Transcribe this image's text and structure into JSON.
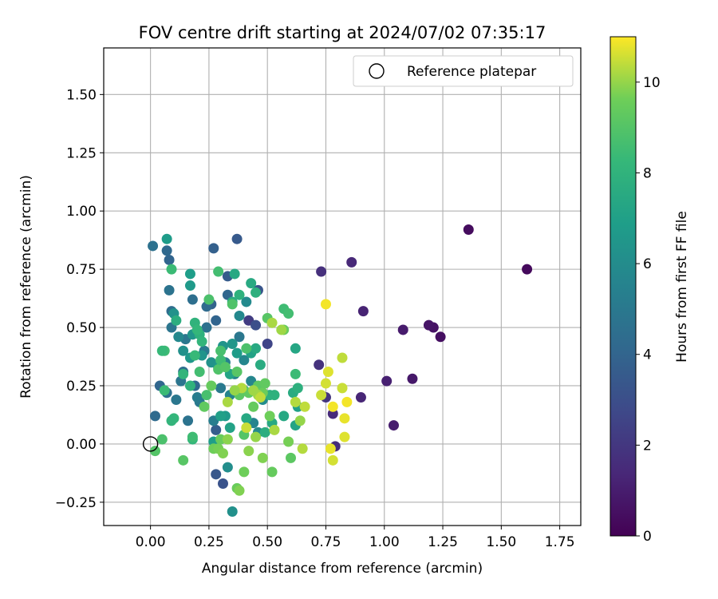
{
  "chart_data": {
    "type": "scatter",
    "title": "FOV centre drift starting at 2024/07/02 07:35:17",
    "xlabel": "Angular distance from reference (arcmin)",
    "ylabel": "Rotation from reference (arcmin)",
    "xlim": [
      -0.2,
      1.84
    ],
    "ylim": [
      -0.35,
      1.7
    ],
    "xticks": [
      0.0,
      0.25,
      0.5,
      0.75,
      1.0,
      1.25,
      1.5,
      1.75
    ],
    "xtick_labels": [
      "0.00",
      "0.25",
      "0.50",
      "0.75",
      "1.00",
      "1.25",
      "1.50",
      "1.75"
    ],
    "yticks": [
      -0.25,
      0.0,
      0.25,
      0.5,
      0.75,
      1.0,
      1.25,
      1.5
    ],
    "ytick_labels": [
      "−0.25",
      "0.00",
      "0.25",
      "0.50",
      "0.75",
      "1.00",
      "1.25",
      "1.50"
    ],
    "grid": true,
    "legend": {
      "position": "top-right",
      "entries": [
        "Reference platepar"
      ]
    },
    "reference_point": {
      "x": 0.0,
      "y": 0.0
    },
    "colorbar": {
      "label": "Hours from first FF file",
      "colormap": "viridis",
      "range": [
        0,
        11.0
      ],
      "ticks": [
        0,
        2,
        4,
        6,
        8,
        10
      ],
      "tick_labels": [
        "0",
        "2",
        "4",
        "6",
        "8",
        "10"
      ]
    },
    "series": [
      {
        "points": [
          [
            1.61,
            0.75,
            0.3
          ],
          [
            1.36,
            0.92,
            0.4
          ],
          [
            1.24,
            0.46,
            0.5
          ],
          [
            1.21,
            0.5,
            0.6
          ],
          [
            1.19,
            0.51,
            0.7
          ],
          [
            1.12,
            0.28,
            0.8
          ],
          [
            1.08,
            0.49,
            0.9
          ],
          [
            1.04,
            0.08,
            1.0
          ],
          [
            1.01,
            0.27,
            1.1
          ],
          [
            0.91,
            0.57,
            1.2
          ],
          [
            0.9,
            0.2,
            1.3
          ],
          [
            0.86,
            0.78,
            1.4
          ],
          [
            0.78,
            0.13,
            1.5
          ],
          [
            0.79,
            -0.01,
            1.6
          ],
          [
            0.73,
            0.74,
            1.7
          ],
          [
            0.72,
            0.34,
            1.8
          ],
          [
            0.75,
            0.2,
            1.9
          ],
          [
            0.42,
            0.53,
            2.2
          ],
          [
            0.5,
            0.43,
            2.6
          ],
          [
            0.45,
            0.51,
            3.0
          ],
          [
            0.46,
            0.66,
            3.3
          ],
          [
            0.37,
            0.88,
            3.5
          ],
          [
            0.27,
            0.84,
            3.8
          ],
          [
            0.08,
            0.79,
            4.0
          ],
          [
            0.07,
            0.83,
            4.2
          ],
          [
            0.33,
            0.72,
            3.6
          ],
          [
            0.26,
            0.6,
            3.9
          ],
          [
            0.33,
            0.64,
            4.1
          ],
          [
            0.24,
            0.59,
            4.3
          ],
          [
            0.28,
            0.53,
            4.0
          ],
          [
            0.28,
            -0.13,
            3.4
          ],
          [
            0.31,
            -0.17,
            3.2
          ],
          [
            0.28,
            0.06,
            3.7
          ],
          [
            0.09,
            0.57,
            4.4
          ],
          [
            0.18,
            0.62,
            4.5
          ],
          [
            0.01,
            0.85,
            4.6
          ],
          [
            0.08,
            0.66,
            4.7
          ],
          [
            0.09,
            0.5,
            4.8
          ],
          [
            0.04,
            0.25,
            4.1
          ],
          [
            0.02,
            0.12,
            4.3
          ],
          [
            0.07,
            0.22,
            4.6
          ],
          [
            0.11,
            0.19,
            4.9
          ],
          [
            0.16,
            0.1,
            4.7
          ],
          [
            0.14,
            0.31,
            4.5
          ],
          [
            0.13,
            0.27,
            4.8
          ],
          [
            0.15,
            0.45,
            4.9
          ],
          [
            0.19,
            0.25,
            4.2
          ],
          [
            0.21,
            0.18,
            5.0
          ],
          [
            0.24,
            0.5,
            4.6
          ],
          [
            0.23,
            0.4,
            5.1
          ],
          [
            0.2,
            0.2,
            5.2
          ],
          [
            0.27,
            0.1,
            5.3
          ],
          [
            0.3,
            0.24,
            5.0
          ],
          [
            0.32,
            0.35,
            5.4
          ],
          [
            0.34,
            0.21,
            5.6
          ],
          [
            0.36,
            0.3,
            5.5
          ],
          [
            0.38,
            0.46,
            4.9
          ],
          [
            0.4,
            0.36,
            5.7
          ],
          [
            0.38,
            0.55,
            5.8
          ],
          [
            0.41,
            0.61,
            5.9
          ],
          [
            0.43,
            0.27,
            5.7
          ],
          [
            0.44,
            0.09,
            5.6
          ],
          [
            0.46,
            0.05,
            5.9
          ],
          [
            0.48,
            0.19,
            6.0
          ],
          [
            0.33,
            -0.1,
            6.1
          ],
          [
            0.35,
            -0.29,
            6.2
          ],
          [
            0.26,
            0.35,
            6.3
          ],
          [
            0.22,
            0.38,
            6.4
          ],
          [
            0.18,
            0.47,
            6.5
          ],
          [
            0.17,
            0.37,
            6.6
          ],
          [
            0.14,
            0.4,
            6.2
          ],
          [
            0.12,
            0.46,
            5.8
          ],
          [
            0.1,
            0.56,
            6.3
          ],
          [
            0.07,
            0.88,
            6.8
          ],
          [
            0.17,
            0.68,
            6.7
          ],
          [
            0.17,
            0.73,
            6.9
          ],
          [
            0.31,
            0.42,
            6.4
          ],
          [
            0.29,
            0.33,
            6.6
          ],
          [
            0.35,
            0.43,
            6.5
          ],
          [
            0.37,
            0.39,
            6.8
          ],
          [
            0.32,
            0.12,
            6.7
          ],
          [
            0.27,
            0.01,
            6.9
          ],
          [
            0.3,
            0.12,
            7.0
          ],
          [
            0.34,
            0.07,
            7.1
          ],
          [
            0.34,
            0.3,
            7.2
          ],
          [
            0.4,
            0.23,
            7.3
          ],
          [
            0.41,
            0.11,
            7.4
          ],
          [
            0.43,
            0.39,
            7.1
          ],
          [
            0.45,
            0.41,
            7.5
          ],
          [
            0.47,
            0.34,
            7.6
          ],
          [
            0.49,
            0.05,
            7.7
          ],
          [
            0.51,
            0.21,
            7.8
          ],
          [
            0.53,
            0.21,
            7.9
          ],
          [
            0.52,
            0.09,
            7.5
          ],
          [
            0.57,
            0.12,
            7.4
          ],
          [
            0.61,
            0.22,
            7.6
          ],
          [
            0.62,
            0.41,
            7.3
          ],
          [
            0.62,
            0.08,
            7.2
          ],
          [
            0.63,
            0.16,
            7.0
          ],
          [
            0.63,
            0.24,
            7.8
          ],
          [
            0.36,
            0.73,
            7.4
          ],
          [
            0.35,
            0.61,
            7.6
          ],
          [
            0.38,
            0.64,
            7.9
          ],
          [
            0.43,
            0.69,
            7.5
          ],
          [
            0.45,
            0.65,
            7.8
          ],
          [
            0.19,
            0.52,
            8.0
          ],
          [
            0.21,
            0.47,
            7.9
          ],
          [
            0.22,
            0.44,
            8.1
          ],
          [
            0.2,
            0.49,
            8.2
          ],
          [
            0.19,
            0.38,
            8.3
          ],
          [
            0.17,
            0.25,
            8.0
          ],
          [
            0.14,
            0.3,
            8.1
          ],
          [
            0.11,
            0.53,
            7.7
          ],
          [
            0.09,
            0.75,
            8.4
          ],
          [
            0.06,
            0.4,
            8.5
          ],
          [
            0.05,
            0.4,
            8.3
          ],
          [
            0.1,
            0.11,
            8.2
          ],
          [
            0.09,
            0.1,
            8.1
          ],
          [
            0.06,
            0.23,
            8.4
          ],
          [
            0.18,
            0.02,
            8.2
          ],
          [
            0.18,
            0.03,
            8.5
          ],
          [
            0.21,
            0.31,
            8.6
          ],
          [
            0.24,
            0.21,
            8.7
          ],
          [
            0.25,
            0.62,
            8.8
          ],
          [
            0.29,
            0.74,
            8.6
          ],
          [
            0.29,
            0.32,
            8.9
          ],
          [
            0.3,
            0.36,
            8.5
          ],
          [
            0.3,
            0.4,
            8.7
          ],
          [
            0.32,
            0.33,
            9.0
          ],
          [
            0.35,
            0.6,
            8.9
          ],
          [
            0.37,
            0.31,
            9.1
          ],
          [
            0.38,
            0.21,
            9.2
          ],
          [
            0.4,
            0.04,
            9.0
          ],
          [
            0.41,
            0.41,
            8.8
          ],
          [
            0.42,
            0.22,
            9.3
          ],
          [
            0.44,
            0.16,
            9.4
          ],
          [
            0.46,
            0.25,
            9.2
          ],
          [
            0.48,
            0.22,
            9.5
          ],
          [
            0.49,
            0.26,
            9.3
          ],
          [
            0.5,
            0.54,
            9.1
          ],
          [
            0.51,
            0.12,
            9.6
          ],
          [
            0.52,
            -0.12,
            9.4
          ],
          [
            0.57,
            0.58,
            8.5
          ],
          [
            0.59,
            0.56,
            8.6
          ],
          [
            0.57,
            0.49,
            9.5
          ],
          [
            0.6,
            -0.06,
            9.2
          ],
          [
            0.62,
            0.3,
            8.4
          ],
          [
            0.59,
            0.01,
            9.7
          ],
          [
            0.02,
            -0.03,
            9.0
          ],
          [
            0.05,
            0.02,
            8.8
          ],
          [
            0.14,
            -0.07,
            9.1
          ],
          [
            0.23,
            0.16,
            9.3
          ],
          [
            0.26,
            0.25,
            9.4
          ],
          [
            0.27,
            -0.02,
            9.6
          ],
          [
            0.29,
            -0.02,
            9.7
          ],
          [
            0.3,
            0.02,
            9.5
          ],
          [
            0.31,
            -0.04,
            9.8
          ],
          [
            0.33,
            0.02,
            9.9
          ],
          [
            0.37,
            -0.19,
            9.5
          ],
          [
            0.38,
            -0.2,
            9.8
          ],
          [
            0.4,
            -0.12,
            9.6
          ],
          [
            0.42,
            -0.03,
            9.9
          ],
          [
            0.45,
            0.03,
            10.0
          ],
          [
            0.46,
            0.21,
            10.1
          ],
          [
            0.48,
            -0.06,
            9.8
          ],
          [
            0.52,
            0.52,
            10.2
          ],
          [
            0.56,
            0.49,
            10.1
          ],
          [
            0.64,
            0.1,
            10.0
          ],
          [
            0.65,
            -0.02,
            10.3
          ],
          [
            0.66,
            0.16,
            10.4
          ],
          [
            0.73,
            0.21,
            10.5
          ],
          [
            0.75,
            0.6,
            10.9
          ],
          [
            0.75,
            0.26,
            10.6
          ],
          [
            0.76,
            0.31,
            10.7
          ],
          [
            0.77,
            -0.02,
            10.8
          ],
          [
            0.78,
            0.16,
            10.9
          ],
          [
            0.78,
            -0.07,
            10.6
          ],
          [
            0.82,
            0.24,
            10.5
          ],
          [
            0.82,
            0.37,
            10.4
          ],
          [
            0.83,
            0.03,
            10.7
          ],
          [
            0.83,
            0.11,
            10.8
          ],
          [
            0.84,
            0.18,
            10.9
          ],
          [
            0.62,
            0.18,
            10.3
          ],
          [
            0.53,
            0.06,
            10.2
          ],
          [
            0.47,
            0.2,
            10.4
          ],
          [
            0.44,
            0.23,
            10.1
          ],
          [
            0.39,
            0.24,
            10.3
          ],
          [
            0.36,
            0.23,
            10.0
          ],
          [
            0.33,
            0.18,
            10.2
          ],
          [
            0.41,
            0.07,
            10.5
          ]
        ]
      }
    ]
  }
}
